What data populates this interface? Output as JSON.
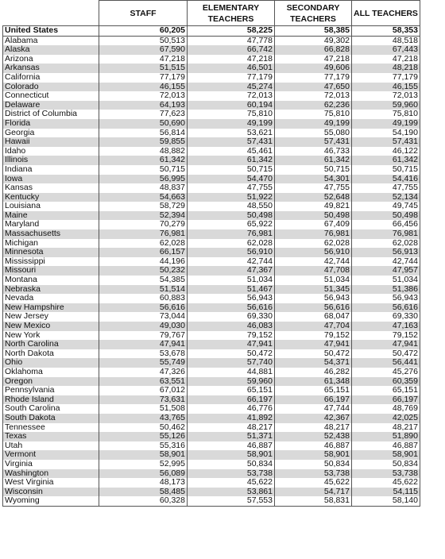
{
  "headers": [
    "",
    "STAFF",
    "ELEMENTARY TEACHERS",
    "SECONDARY TEACHERS",
    "ALL TEACHERS"
  ],
  "rows": [
    [
      "United States",
      "60,205",
      "58,225",
      "58,385",
      "58,353"
    ],
    [
      "Alabama",
      "50,513",
      "47,778",
      "49,302",
      "48,518"
    ],
    [
      "Alaska",
      "67,590",
      "66,742",
      "66,828",
      "67,443"
    ],
    [
      "Arizona",
      "47,218",
      "47,218",
      "47,218",
      "47,218"
    ],
    [
      "Arkansas",
      "51,515",
      "46,501",
      "49,606",
      "48,218"
    ],
    [
      "California",
      "77,179",
      "77,179",
      "77,179",
      "77,179"
    ],
    [
      "Colorado",
      "46,155",
      "45,274",
      "47,650",
      "46,155"
    ],
    [
      "Connecticut",
      "72,013",
      "72,013",
      "72,013",
      "72,013"
    ],
    [
      "Delaware",
      "64,193",
      "60,194",
      "62,236",
      "59,960"
    ],
    [
      "District of Columbia",
      "77,623",
      "75,810",
      "75,810",
      "75,810"
    ],
    [
      "Florida",
      "50,690",
      "49,199",
      "49,199",
      "49,199"
    ],
    [
      "Georgia",
      "56,814",
      "53,621",
      "55,080",
      "54,190"
    ],
    [
      "Hawaii",
      "59,855",
      "57,431",
      "57,431",
      "57,431"
    ],
    [
      "Idaho",
      "48,882",
      "45,461",
      "46,733",
      "46,122"
    ],
    [
      "Illinois",
      "61,342",
      "61,342",
      "61,342",
      "61,342"
    ],
    [
      "Indiana",
      "50,715",
      "50,715",
      "50,715",
      "50,715"
    ],
    [
      "Iowa",
      "56,995",
      "54,470",
      "54,301",
      "54,416"
    ],
    [
      "Kansas",
      "48,837",
      "47,755",
      "47,755",
      "47,755"
    ],
    [
      "Kentucky",
      "54,663",
      "51,922",
      "52,648",
      "52,134"
    ],
    [
      "Louisiana",
      "58,729",
      "48,550",
      "49,821",
      "49,745"
    ],
    [
      "Maine",
      "52,394",
      "50,498",
      "50,498",
      "50,498"
    ],
    [
      "Maryland",
      "70,279",
      "65,922",
      "67,409",
      "66,456"
    ],
    [
      "Massachusetts",
      "76,981",
      "76,981",
      "76,981",
      "76,981"
    ],
    [
      "Michigan",
      "62,028",
      "62,028",
      "62,028",
      "62,028"
    ],
    [
      "Minnesota",
      "66,157",
      "56,910",
      "56,910",
      "56,913"
    ],
    [
      "Mississippi",
      "44,196",
      "42,744",
      "42,744",
      "42,744"
    ],
    [
      "Missouri",
      "50,232",
      "47,367",
      "47,708",
      "47,957"
    ],
    [
      "Montana",
      "54,385",
      "51,034",
      "51,034",
      "51,034"
    ],
    [
      "Nebraska",
      "51,514",
      "51,467",
      "51,345",
      "51,386"
    ],
    [
      "Nevada",
      "60,883",
      "56,943",
      "56,943",
      "56,943"
    ],
    [
      "New Hampshire",
      "56,616",
      "56,616",
      "56,616",
      "56,616"
    ],
    [
      "New Jersey",
      "73,044",
      "69,330",
      "68,047",
      "69,330"
    ],
    [
      "New Mexico",
      "49,030",
      "46,083",
      "47,704",
      "47,163"
    ],
    [
      "New York",
      "79,767",
      "79,152",
      "79,152",
      "79,152"
    ],
    [
      "North Carolina",
      "47,941",
      "47,941",
      "47,941",
      "47,941"
    ],
    [
      "North Dakota",
      "53,678",
      "50,472",
      "50,472",
      "50,472"
    ],
    [
      "Ohio",
      "55,749",
      "57,740",
      "54,371",
      "56,441"
    ],
    [
      "Oklahoma",
      "47,326",
      "44,881",
      "46,282",
      "45,276"
    ],
    [
      "Oregon",
      "63,551",
      "59,960",
      "61,348",
      "60,359"
    ],
    [
      "Pennsylvania",
      "67,012",
      "65,151",
      "65,151",
      "65,151"
    ],
    [
      "Rhode Island",
      "73,631",
      "66,197",
      "66,197",
      "66,197"
    ],
    [
      "South Carolina",
      "51,508",
      "46,776",
      "47,744",
      "48,769"
    ],
    [
      "South Dakota",
      "43,765",
      "41,892",
      "42,367",
      "42,025"
    ],
    [
      "Tennessee",
      "50,462",
      "48,217",
      "48,217",
      "48,217"
    ],
    [
      "Texas",
      "55,126",
      "51,371",
      "52,438",
      "51,890"
    ],
    [
      "Utah",
      "55,316",
      "46,887",
      "46,887",
      "46,887"
    ],
    [
      "Vermont",
      "58,901",
      "58,901",
      "58,901",
      "58,901"
    ],
    [
      "Virginia",
      "52,995",
      "50,834",
      "50,834",
      "50,834"
    ],
    [
      "Washington",
      "56,089",
      "53,738",
      "53,738",
      "53,738"
    ],
    [
      "West Virginia",
      "48,173",
      "45,622",
      "45,622",
      "45,622"
    ],
    [
      "Wisconsin",
      "58,485",
      "53,861",
      "54,717",
      "54,115"
    ],
    [
      "Wyoming",
      "60,328",
      "57,553",
      "58,831",
      "58,140"
    ]
  ]
}
